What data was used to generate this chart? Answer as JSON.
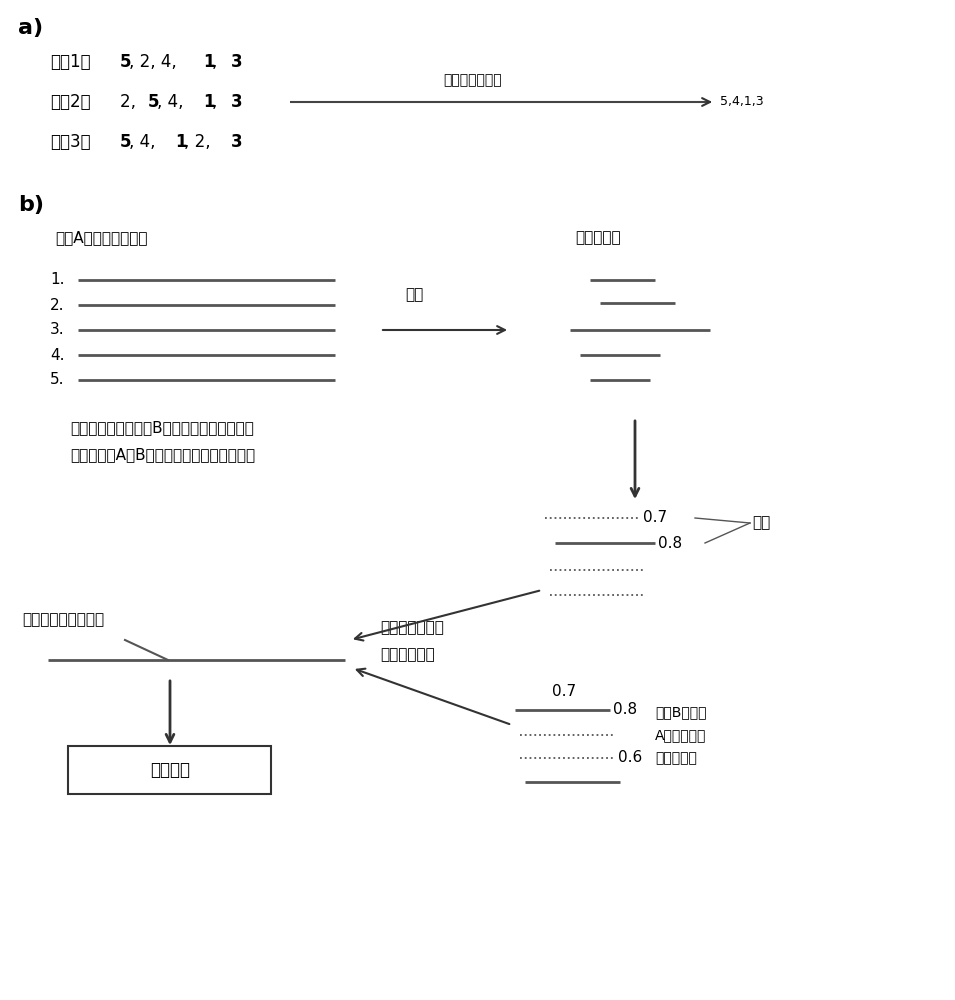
{
  "bg_color": "#ffffff",
  "title_a": "a)",
  "title_b": "b)",
  "seq1_label": "序共1：",
  "seq2_label": "序共2：",
  "seq3_label": "序共3：",
  "arrow_label_a": "提取同序子序列",
  "arrow_result_a": "5,4,1,3",
  "type_a_label": "类型A多个样本的序列",
  "subseq_label": "子序列集合",
  "extract_label": "提取",
  "filter_text1": "过滤同属于另一类型B样本的高频同序子序列",
  "filter_text2": "并根据其在A、B中出现的次数差异赋予权重",
  "weight_label": "权重",
  "observe_label1": "观察子序列是否",
  "observe_label2": "在序列中出现",
  "test_label": "待测类型样本的序列",
  "result_label": "类型判断",
  "other_label1": "来自B并根据",
  "other_label2": "A过滤的另一",
  "other_label3": "子序列集合",
  "weight_07": "0.7",
  "weight_08_1": "0.8",
  "weight_07_2": "0.7",
  "weight_08_2": "0.8",
  "weight_06": "0.6",
  "parts_seq1": [
    [
      "5",
      true
    ],
    [
      ", 2, 4, ",
      false
    ],
    [
      "1",
      true
    ],
    [
      ", ",
      false
    ],
    [
      "3",
      true
    ]
  ],
  "parts_seq2": [
    [
      "2, ",
      false
    ],
    [
      "5",
      true
    ],
    [
      ", 4, ",
      false
    ],
    [
      "1",
      true
    ],
    [
      ", ",
      false
    ],
    [
      "3",
      true
    ]
  ],
  "parts_seq3": [
    [
      "5",
      true
    ],
    [
      ", 4, ",
      false
    ],
    [
      "1",
      true
    ],
    [
      ", 2, ",
      false
    ],
    [
      "3",
      true
    ]
  ]
}
